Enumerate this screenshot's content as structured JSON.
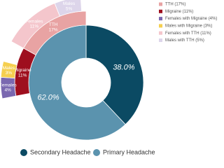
{
  "chart_data": {
    "type": "nested-donut",
    "inner": {
      "labels": [
        "Secondary Headache",
        "Primary Headache"
      ],
      "values": [
        38,
        62
      ],
      "value_labels": [
        "38.0%",
        "62.0%"
      ],
      "colors": [
        "#0b4a63",
        "#5b93ae"
      ]
    },
    "middle": {
      "legend": [
        "TTH (17%)",
        "Migraine (11%)"
      ],
      "segment_labels": [
        [
          "TTH",
          "17%"
        ],
        [
          "Migraine",
          "11%"
        ]
      ],
      "values": [
        17,
        11
      ],
      "colors": [
        "#e8a3a3",
        "#9e0f1e"
      ]
    },
    "outer": {
      "legend": [
        "Females with Migraine (4%)",
        "Males with Migraine (3%)",
        "Females with TTH (11%)",
        "Males with TTH (5%)"
      ],
      "segment_labels": [
        [
          "Females",
          "4%"
        ],
        [
          "Males",
          "3%"
        ],
        [
          "Females",
          "11%"
        ],
        [
          "Males",
          "5%"
        ]
      ],
      "values": [
        4,
        3,
        11,
        5
      ],
      "parents": [
        1,
        1,
        0,
        0
      ],
      "colors": [
        "#7a68b0",
        "#f5cf4f",
        "#f4c6cc",
        "#ddd5ea"
      ]
    }
  }
}
